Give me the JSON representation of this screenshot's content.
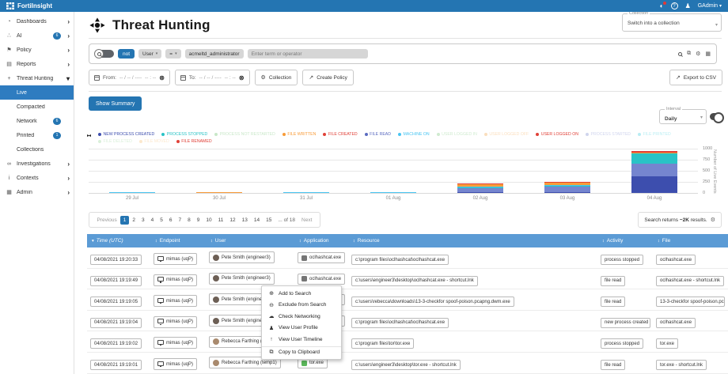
{
  "topbar": {
    "brand": "FortiInsight",
    "user": "GAdmin",
    "user_caret": "▾",
    "help_glyph": "?",
    "notification_glyph": "◐",
    "user_glyph": "♟"
  },
  "sidebar": {
    "items": [
      {
        "name": "dashboards",
        "label": "Dashboards",
        "glyph": "◔",
        "chevron": "right"
      },
      {
        "name": "ai",
        "label": "AI",
        "glyph": "∴",
        "badge": "6",
        "chevron": "right"
      },
      {
        "name": "policy",
        "label": "Policy",
        "glyph": "⚑",
        "chevron": "right"
      },
      {
        "name": "reports",
        "label": "Reports",
        "glyph": "▤",
        "chevron": "right"
      },
      {
        "name": "threat-hunting",
        "label": "Threat Hunting",
        "glyph": "+",
        "chevron": "down"
      },
      {
        "name": "live",
        "label": "Live",
        "sub": true,
        "active": true
      },
      {
        "name": "compacted",
        "label": "Compacted",
        "sub": true
      },
      {
        "name": "network",
        "label": "Network",
        "sub": true,
        "badge": "6"
      },
      {
        "name": "printed",
        "label": "Printed",
        "sub": true,
        "badge": "1"
      },
      {
        "name": "collections",
        "label": "Collections",
        "sub": true
      },
      {
        "name": "investigations",
        "label": "Investigations",
        "glyph": "∞",
        "chevron": "right"
      },
      {
        "name": "contexts",
        "label": "Contexts",
        "glyph": "i",
        "chevron": "right"
      },
      {
        "name": "admin",
        "label": "Admin",
        "glyph": "▦",
        "chevron": "right"
      }
    ]
  },
  "header": {
    "title": "Threat Hunting",
    "collection_label": "Collection",
    "collection_value": "Switch into a collection"
  },
  "search": {
    "not_label": "not",
    "field": "User",
    "operator": "=",
    "term": "acmeltd_administrator",
    "placeholder": "Enter term or operator",
    "right_icons": [
      "search-icon",
      "copy-icon",
      "settings-icon",
      "grid-icon"
    ],
    "copy_glyph": "⧉",
    "settings_glyph": "⚙",
    "grid_glyph": "▦"
  },
  "filters": {
    "from_label": "From:",
    "to_label": "To:",
    "date_placeholder": "-- / -- / ----",
    "time_placeholder": "-- : --",
    "clear_glyph": "⊗",
    "collection_button": "Collection",
    "collection_icon_glyph": "⚙",
    "create_policy_button": "Create Policy",
    "create_policy_icon_glyph": "↗",
    "export_button": "Export to CSV",
    "export_icon_glyph": "↗"
  },
  "summary_button": "Show Summary",
  "interval": {
    "label": "Interval",
    "value": "Daily"
  },
  "legend": {
    "pager_glyph": "▸◂",
    "rows": [
      [
        {
          "label": "NEW PROCESS CREATED",
          "color": "#3d4eae",
          "faded": false
        },
        {
          "label": "PROCESS STOPPED",
          "color": "#29c3c6",
          "faded": false
        },
        {
          "label": "PROCESS NOT RESTARTED",
          "color": "#7ec77e",
          "faded": true
        },
        {
          "label": "FILE WRITTEN",
          "color": "#f89b38",
          "faded": false
        },
        {
          "label": "FILE CREATED",
          "color": "#e04138",
          "faded": false
        },
        {
          "label": "FILE READ",
          "color": "#5b6bc0",
          "faded": false
        },
        {
          "label": "MACHINE ON",
          "color": "#49c5f2",
          "faded": false
        },
        {
          "label": "USER LOGGED IN",
          "color": "#8fd08f",
          "faded": true
        },
        {
          "label": "USER LOGGED OFF",
          "color": "#f5b263",
          "faded": true
        },
        {
          "label": "USER LOGGED ON",
          "color": "#e04138",
          "faded": false
        },
        {
          "label": "PROCESS STARTED",
          "color": "#8f9ad6",
          "faded": true
        },
        {
          "label": "FILE PRINTED",
          "color": "#59d6e3",
          "faded": true
        }
      ],
      [
        {
          "label": "FILE DELETED",
          "color": "#a8dba8",
          "faded": true
        },
        {
          "label": "FILE MOVED",
          "color": "#f8c98a",
          "faded": true
        },
        {
          "label": "FILE RENAMED",
          "color": "#e04138",
          "faded": false
        }
      ]
    ]
  },
  "chart_data": {
    "type": "bar",
    "stacked": true,
    "title": "",
    "xlabel": "",
    "ylabel": "Number of Live Events",
    "categories": [
      "29 Jul",
      "30 Jul",
      "31 Jul",
      "01 Aug",
      "02 Aug",
      "03 Aug",
      "04 Aug"
    ],
    "series": [
      {
        "name": "NEW PROCESS CREATED",
        "color": "#3d4eae",
        "values": [
          0,
          0,
          0,
          0,
          15,
          25,
          370
        ]
      },
      {
        "name": "FILE READ",
        "color": "#7585cf",
        "values": [
          0,
          0,
          0,
          0,
          95,
          110,
          290
        ]
      },
      {
        "name": "PROCESS STOPPED",
        "color": "#29c3c6",
        "values": [
          0,
          0,
          0,
          0,
          15,
          20,
          225
        ]
      },
      {
        "name": "MACHINE ON",
        "color": "#49c5f2",
        "values": [
          15,
          0,
          8,
          3,
          10,
          10,
          0
        ]
      },
      {
        "name": "FILE WRITTEN",
        "color": "#f89b38",
        "values": [
          0,
          15,
          0,
          0,
          45,
          55,
          35
        ]
      },
      {
        "name": "FILE CREATED",
        "color": "#e04138",
        "values": [
          0,
          0,
          0,
          0,
          15,
          25,
          25
        ]
      }
    ],
    "yticks": [
      0,
      250,
      500,
      750,
      1000
    ],
    "ylim": [
      0,
      1000
    ],
    "grid": true,
    "legend_position": "top"
  },
  "pagination": {
    "previous": "Previous",
    "pages": [
      "1",
      "2",
      "3",
      "4",
      "5",
      "6",
      "7",
      "8",
      "9",
      "10",
      "11",
      "12",
      "13",
      "14",
      "15"
    ],
    "active": "1",
    "more": "... of 18",
    "next": "Next"
  },
  "results": {
    "prefix": "Search returns",
    "count": "~2K",
    "suffix": "results.",
    "gear_glyph": "⚙"
  },
  "table": {
    "columns": [
      {
        "label": "Time (UTC)",
        "sorted": true
      },
      {
        "label": "Endpoint"
      },
      {
        "label": "User"
      },
      {
        "label": "Application"
      },
      {
        "label": "Resource"
      },
      {
        "label": "Activity"
      },
      {
        "label": "File"
      }
    ],
    "rows": [
      {
        "time": "04/08/2021 19:20:33",
        "endpoint": "mimas (uqP)",
        "user": "Pete Smith (engineer3)",
        "avatar_color": "#6d5f55",
        "app": "oclhashcat.exe",
        "app_color": "#757575",
        "resource": "c:\\program files\\oclhashcat\\oclhashcat.exe",
        "activity": "process stopped",
        "file": "oclhashcat.exe"
      },
      {
        "time": "04/08/2021 19:19:49",
        "endpoint": "mimas (uqP)",
        "user": "Pete Smith (engineer3)",
        "avatar_color": "#6d5f55",
        "app": "oclhashcat.exe",
        "app_color": "#757575",
        "resource": "c:\\users\\engineer3\\desktop\\oclhashcat.exe - shortcut.lnk",
        "activity": "file read",
        "file": "oclhashcat.exe - shortcut.lnk"
      },
      {
        "time": "04/08/2021 19:19:05",
        "endpoint": "mimas (uqP)",
        "user": "Pete Smith (engineer3)",
        "avatar_color": "#6d5f55",
        "app": "oclhashcat.exe",
        "app_color": "#757575",
        "resource": "c:\\users\\rebecca\\downloads\\13-3-checkfor spoof-poison.pcapng.dwm.exe",
        "activity": "file read",
        "file": "13-3-checkfor spoof-poison.pcapng.dwm.exe"
      },
      {
        "time": "04/08/2021 19:19:04",
        "endpoint": "mimas (uqP)",
        "user": "Pete Smith (engineer3)",
        "avatar_color": "#6d5f55",
        "app": "oclhashcat.exe",
        "app_color": "#757575",
        "resource": "c:\\program files\\oclhashcat\\oclhashcat.exe",
        "activity": "new process created",
        "file": "oclhashcat.exe"
      },
      {
        "time": "04/08/2021 19:19:02",
        "endpoint": "mimas (uqP)",
        "user": "Rebecca Farthing (temp1)",
        "avatar_color": "#a98a6e",
        "app": "tor.exe",
        "app_color": "#5cb85c",
        "resource": "c:\\program files\\tor\\tor.exe",
        "activity": "process stopped",
        "file": "tor.exe"
      },
      {
        "time": "04/08/2021 19:19:01",
        "endpoint": "mimas (uqP)",
        "user": "Rebecca Farthing (temp1)",
        "avatar_color": "#a98a6e",
        "app": "tor.exe",
        "app_color": "#5cb85c",
        "resource": "c:\\users\\engineer3\\desktop\\tor.exe - shortcut.lnk",
        "activity": "file read",
        "file": "tor.exe - shortcut.lnk"
      }
    ]
  },
  "context_menu": {
    "items": [
      {
        "label": "Add to Search",
        "glyph": "⊕",
        "icon": "search-plus-icon"
      },
      {
        "label": "Exclude from Search",
        "glyph": "⊖",
        "icon": "search-minus-icon"
      },
      {
        "label": "Check Networking",
        "glyph": "☁",
        "icon": "cloud-icon"
      },
      {
        "label": "View User Profile",
        "glyph": "♟",
        "icon": "user-icon"
      },
      {
        "label": "View User Timeline",
        "glyph": "↑",
        "icon": "timeline-icon"
      },
      {
        "label": "Copy to Clipboard",
        "glyph": "⧉",
        "icon": "copy-icon"
      }
    ]
  }
}
